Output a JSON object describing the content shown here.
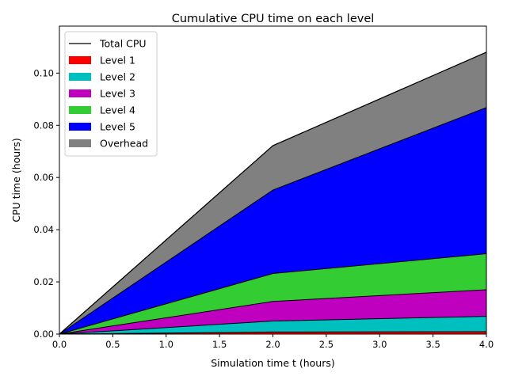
{
  "chart_data": {
    "type": "area",
    "title": "Cumulative CPU time on each level",
    "xlabel": "Simulation time t (hours)",
    "ylabel": "CPU time (hours)",
    "xlim": [
      0,
      4
    ],
    "ylim": [
      0,
      0.118
    ],
    "x": [
      0,
      2,
      4
    ],
    "xticks": [
      "0.0",
      "0.5",
      "1.0",
      "1.5",
      "2.0",
      "2.5",
      "3.0",
      "3.5",
      "4.0"
    ],
    "yticks": [
      "0.00",
      "0.02",
      "0.04",
      "0.06",
      "0.08",
      "0.10"
    ],
    "stacked": true,
    "grid": false,
    "legend_position": "top-left",
    "series": [
      {
        "name": "Level 1",
        "color": "#ff0000",
        "values": [
          0,
          0.0008,
          0.0009
        ]
      },
      {
        "name": "Level 2",
        "color": "#00bfbf",
        "values": [
          0,
          0.0042,
          0.0059
        ]
      },
      {
        "name": "Level 3",
        "color": "#bf00bf",
        "values": [
          0,
          0.0075,
          0.0102
        ]
      },
      {
        "name": "Level 4",
        "color": "#33cc33",
        "values": [
          0,
          0.0107,
          0.0138
        ]
      },
      {
        "name": "Level 5",
        "color": "#0000ff",
        "values": [
          0,
          0.032,
          0.056
        ]
      },
      {
        "name": "Overhead",
        "color": "#808080",
        "values": [
          0,
          0.017,
          0.0212
        ]
      }
    ],
    "total_line": {
      "name": "Total CPU",
      "color": "#000000",
      "values": [
        0,
        0.0722,
        0.108
      ]
    }
  }
}
